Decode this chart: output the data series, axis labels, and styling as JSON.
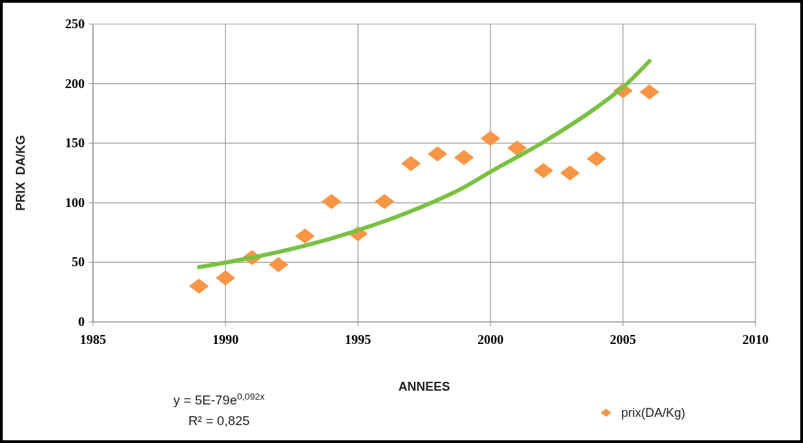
{
  "chart_data": {
    "type": "scatter",
    "xlabel": "ANNEES",
    "ylabel": "PRIX  DA/KG",
    "xlim": [
      1985,
      2010
    ],
    "xticks": [
      1985,
      1990,
      1995,
      2000,
      2005,
      2010
    ],
    "ylim": [
      0,
      250
    ],
    "yticks": [
      0,
      50,
      100,
      150,
      200,
      250
    ],
    "grid": true,
    "legend": "bottom right",
    "series": [
      {
        "name": "prix(DA/Kg)",
        "marker": "diamond",
        "color": "#f79646",
        "x": [
          1989,
          1990,
          1991,
          1992,
          1993,
          1994,
          1995,
          1996,
          1997,
          1998,
          1999,
          2000,
          2001,
          2002,
          2003,
          2004,
          2005,
          2006
        ],
        "values": [
          30,
          37,
          54,
          48,
          72,
          101,
          74,
          101,
          133,
          141,
          138,
          154,
          146,
          127,
          125,
          137,
          194,
          193
        ]
      },
      {
        "type": "line",
        "color": "#7ac143",
        "x": [
          1989,
          1991,
          1993,
          1995,
          1997,
          1999,
          2000,
          2002,
          2004,
          2005,
          2006
        ],
        "values": [
          46,
          54,
          64,
          77,
          93,
          113,
          126,
          151,
          180,
          197,
          219
        ]
      }
    ],
    "annotations": [
      "y = 5E-79e$^{0,092x}$",
      "R² = 0,825"
    ]
  }
}
